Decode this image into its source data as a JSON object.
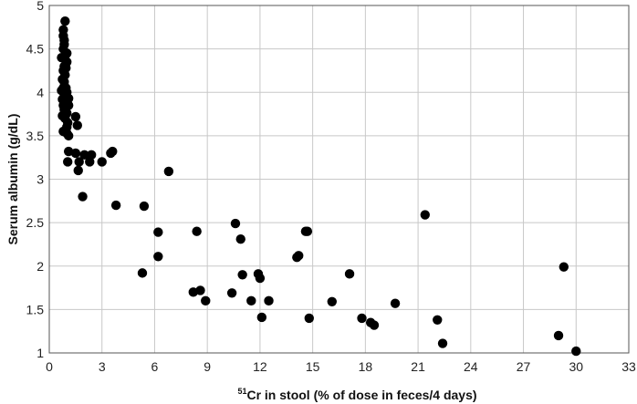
{
  "chart_data": {
    "type": "scatter",
    "title": "",
    "xlabel_sup": "51",
    "xlabel_main": "Cr in stool (% of dose in feces/4 days)",
    "ylabel": "Serum albumin (g/dL)",
    "xlim": [
      0,
      33
    ],
    "ylim": [
      1,
      5
    ],
    "xticks": [
      0,
      3,
      6,
      9,
      12,
      15,
      18,
      21,
      24,
      27,
      30,
      33
    ],
    "xtick_labels": [
      "0",
      "3",
      "6",
      "9",
      "12",
      "15",
      "18",
      "21",
      "24",
      "27",
      "30",
      "33"
    ],
    "yticks": [
      1,
      1.5,
      2,
      2.5,
      3,
      3.5,
      4,
      4.5,
      5
    ],
    "ytick_labels": [
      "1",
      "1.5",
      "2",
      "2.5",
      "3",
      "3.5",
      "4",
      "4.5",
      "5"
    ],
    "grid": true,
    "legend": "none",
    "colors": {
      "points": "#000000",
      "grid": "#c8c8c8",
      "frame": "#555555"
    },
    "series": [
      {
        "points": [
          [
            0.9,
            4.82
          ],
          [
            0.8,
            4.72
          ],
          [
            0.8,
            4.65
          ],
          [
            0.85,
            4.6
          ],
          [
            0.85,
            4.55
          ],
          [
            0.8,
            4.5
          ],
          [
            1.0,
            4.45
          ],
          [
            0.9,
            4.42
          ],
          [
            0.7,
            4.4
          ],
          [
            1.0,
            4.35
          ],
          [
            0.85,
            4.3
          ],
          [
            0.95,
            4.28
          ],
          [
            0.8,
            4.25
          ],
          [
            0.9,
            4.2
          ],
          [
            0.75,
            4.15
          ],
          [
            0.85,
            4.12
          ],
          [
            0.8,
            4.05
          ],
          [
            0.95,
            4.05
          ],
          [
            0.7,
            4.02
          ],
          [
            1.0,
            4.0
          ],
          [
            0.85,
            3.98
          ],
          [
            1.1,
            3.93
          ],
          [
            0.75,
            3.92
          ],
          [
            0.95,
            3.88
          ],
          [
            0.8,
            3.85
          ],
          [
            1.1,
            3.85
          ],
          [
            0.85,
            3.8
          ],
          [
            1.0,
            3.76
          ],
          [
            0.75,
            3.73
          ],
          [
            1.5,
            3.72
          ],
          [
            0.9,
            3.7
          ],
          [
            1.05,
            3.65
          ],
          [
            1.6,
            3.62
          ],
          [
            1.0,
            3.6
          ],
          [
            0.8,
            3.55
          ],
          [
            1.0,
            3.53
          ],
          [
            1.1,
            3.5
          ],
          [
            1.1,
            3.32
          ],
          [
            1.5,
            3.3
          ],
          [
            2.0,
            3.28
          ],
          [
            2.4,
            3.28
          ],
          [
            3.5,
            3.3
          ],
          [
            3.6,
            3.32
          ],
          [
            1.05,
            3.2
          ],
          [
            1.7,
            3.2
          ],
          [
            2.3,
            3.2
          ],
          [
            3.0,
            3.2
          ],
          [
            1.65,
            3.1
          ],
          [
            6.8,
            3.09
          ],
          [
            1.9,
            2.8
          ],
          [
            3.8,
            2.7
          ],
          [
            5.4,
            2.69
          ],
          [
            6.2,
            2.39
          ],
          [
            8.4,
            2.4
          ],
          [
            10.6,
            2.49
          ],
          [
            10.9,
            2.31
          ],
          [
            14.6,
            2.4
          ],
          [
            14.7,
            2.4
          ],
          [
            21.4,
            2.59
          ],
          [
            6.2,
            2.11
          ],
          [
            14.1,
            2.1
          ],
          [
            14.2,
            2.12
          ],
          [
            5.3,
            1.92
          ],
          [
            11.0,
            1.9
          ],
          [
            11.9,
            1.91
          ],
          [
            12.0,
            1.86
          ],
          [
            17.1,
            1.91
          ],
          [
            29.3,
            1.99
          ],
          [
            8.2,
            1.7
          ],
          [
            8.6,
            1.72
          ],
          [
            10.4,
            1.69
          ],
          [
            8.9,
            1.6
          ],
          [
            11.5,
            1.6
          ],
          [
            12.5,
            1.6
          ],
          [
            16.1,
            1.59
          ],
          [
            19.7,
            1.57
          ],
          [
            12.1,
            1.41
          ],
          [
            14.8,
            1.4
          ],
          [
            17.8,
            1.4
          ],
          [
            18.3,
            1.35
          ],
          [
            18.5,
            1.32
          ],
          [
            22.1,
            1.38
          ],
          [
            29.0,
            1.2
          ],
          [
            22.4,
            1.11
          ],
          [
            30.0,
            1.02
          ]
        ]
      }
    ]
  }
}
